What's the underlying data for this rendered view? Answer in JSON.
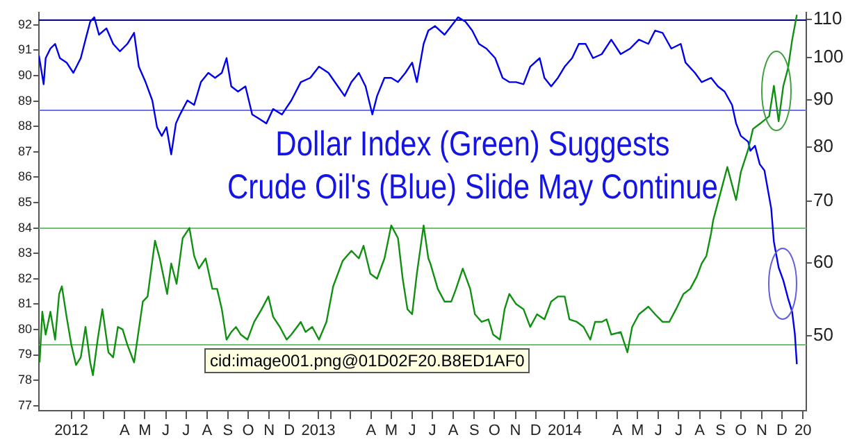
{
  "chart_data": {
    "type": "line",
    "title": "Dollar Index (Green) Suggests",
    "subtitle": "Crude Oil's (Blue) Slide May Continue",
    "annotations": [
      "cid:image001.png@01D02F20.B8ED1AF0"
    ],
    "xlim": [
      "2011-12-10",
      "2015-01-20"
    ],
    "xticks": [
      {
        "value": "2012-01-27",
        "label": "2012"
      },
      {
        "value": "2012-02-15",
        "label": null
      },
      {
        "value": "2012-03-15",
        "label": null
      },
      {
        "value": "2012-04-15",
        "label": "A"
      },
      {
        "value": "2012-05-15",
        "label": "M"
      },
      {
        "value": "2012-06-15",
        "label": "J"
      },
      {
        "value": "2012-07-15",
        "label": "J"
      },
      {
        "value": "2012-08-15",
        "label": "A"
      },
      {
        "value": "2012-09-15",
        "label": "S"
      },
      {
        "value": "2012-10-15",
        "label": "O"
      },
      {
        "value": "2012-11-15",
        "label": "N"
      },
      {
        "value": "2012-12-15",
        "label": "D"
      },
      {
        "value": "2013-01-27",
        "label": "2013"
      },
      {
        "value": "2013-02-15",
        "label": null
      },
      {
        "value": "2013-03-15",
        "label": null
      },
      {
        "value": "2013-04-15",
        "label": "A"
      },
      {
        "value": "2013-05-15",
        "label": "M"
      },
      {
        "value": "2013-06-15",
        "label": "J"
      },
      {
        "value": "2013-07-15",
        "label": "J"
      },
      {
        "value": "2013-08-15",
        "label": "A"
      },
      {
        "value": "2013-09-15",
        "label": "S"
      },
      {
        "value": "2013-10-15",
        "label": "O"
      },
      {
        "value": "2013-11-15",
        "label": "N"
      },
      {
        "value": "2013-12-15",
        "label": "D"
      },
      {
        "value": "2014-01-27",
        "label": "2014"
      },
      {
        "value": "2014-02-15",
        "label": null
      },
      {
        "value": "2014-03-15",
        "label": null
      },
      {
        "value": "2014-04-15",
        "label": "A"
      },
      {
        "value": "2014-05-15",
        "label": "M"
      },
      {
        "value": "2014-06-15",
        "label": "J"
      },
      {
        "value": "2014-07-15",
        "label": "J"
      },
      {
        "value": "2014-08-15",
        "label": "A"
      },
      {
        "value": "2014-09-15",
        "label": "S"
      },
      {
        "value": "2014-10-15",
        "label": "O"
      },
      {
        "value": "2014-11-15",
        "label": "N"
      },
      {
        "value": "2014-12-15",
        "label": "D"
      },
      {
        "value": "2015-01-15",
        "label": "20"
      }
    ],
    "ylim": [
      76.8,
      92.5
    ],
    "yticks": [
      77,
      78,
      79,
      80,
      81,
      82,
      83,
      84,
      85,
      86,
      87,
      88,
      89,
      90,
      91,
      92
    ],
    "y2lim": [
      41.5,
      112
    ],
    "y2ticks": [
      50,
      60,
      70,
      80,
      90,
      100,
      110
    ],
    "log": "y2",
    "grid": false,
    "legend": false,
    "ref_lines": [
      {
        "axis": "y2",
        "value": 110,
        "color": "#000080"
      },
      {
        "axis": "y2",
        "value": 87.8,
        "color": "#7070e8"
      },
      {
        "axis": "y",
        "value": 84,
        "color": "#70c070"
      },
      {
        "axis": "y",
        "value": 79.4,
        "color": "#70c070"
      }
    ],
    "series": [
      {
        "color": "#109010",
        "axis": "y",
        "x": [
          "2011-12-11",
          "2011-12-15",
          "2011-12-20",
          "2011-12-27",
          "2012-01-03",
          "2012-01-09",
          "2012-01-13",
          "2012-01-20",
          "2012-01-27",
          "2012-02-03",
          "2012-02-10",
          "2012-02-17",
          "2012-02-24",
          "2012-02-28",
          "2012-03-06",
          "2012-03-13",
          "2012-03-22",
          "2012-03-29",
          "2012-04-05",
          "2012-04-12",
          "2012-04-19",
          "2012-04-29",
          "2012-05-06",
          "2012-05-12",
          "2012-05-19",
          "2012-05-30",
          "2012-06-06",
          "2012-06-17",
          "2012-06-23",
          "2012-07-01",
          "2012-07-10",
          "2012-07-20",
          "2012-07-27",
          "2012-08-03",
          "2012-08-13",
          "2012-08-23",
          "2012-08-30",
          "2012-09-06",
          "2012-09-13",
          "2012-09-20",
          "2012-09-27",
          "2012-10-04",
          "2012-10-14",
          "2012-10-24",
          "2012-11-04",
          "2012-11-14",
          "2012-11-21",
          "2012-12-01",
          "2012-12-11",
          "2012-12-18",
          "2013-01-01",
          "2013-01-08",
          "2013-01-18",
          "2013-01-28",
          "2013-02-08",
          "2013-02-18",
          "2013-03-04",
          "2013-03-17",
          "2013-03-28",
          "2013-04-04",
          "2013-04-14",
          "2013-04-24",
          "2013-05-05",
          "2013-05-15",
          "2013-05-25",
          "2013-06-01",
          "2013-06-08",
          "2013-06-15",
          "2013-06-22",
          "2013-07-02",
          "2013-07-09",
          "2013-07-12",
          "2013-07-23",
          "2013-08-02",
          "2013-08-12",
          "2013-08-19",
          "2013-08-29",
          "2013-09-09",
          "2013-09-16",
          "2013-09-26",
          "2013-10-06",
          "2013-10-13",
          "2013-10-23",
          "2013-10-30",
          "2013-11-06",
          "2013-11-16",
          "2013-11-27",
          "2013-12-07",
          "2013-12-17",
          "2013-12-28",
          "2014-01-07",
          "2014-01-17",
          "2014-01-27",
          "2014-02-03",
          "2014-02-14",
          "2014-02-24",
          "2014-03-06",
          "2014-03-13",
          "2014-03-23",
          "2014-03-30",
          "2014-04-06",
          "2014-04-20",
          "2014-04-30",
          "2014-05-07",
          "2014-05-17",
          "2014-05-31",
          "2014-06-10",
          "2014-06-21",
          "2014-07-01",
          "2014-07-11",
          "2014-07-22",
          "2014-08-01",
          "2014-08-11",
          "2014-08-18",
          "2014-08-25",
          "2014-09-01",
          "2014-09-04",
          "2014-09-18",
          "2014-09-25",
          "2014-10-08",
          "2014-10-15",
          "2014-10-26",
          "2014-11-02",
          "2014-11-12",
          "2014-11-26",
          "2014-12-03",
          "2014-12-10",
          "2014-12-17",
          "2014-12-24",
          "2014-12-30",
          "2015-01-06"
        ],
        "values": [
          78.7,
          80.7,
          79.8,
          80.7,
          79.6,
          81.4,
          81.7,
          80.5,
          79.4,
          78.6,
          78.9,
          80.1,
          78.7,
          78.2,
          79.6,
          80.8,
          79.1,
          78.9,
          80.1,
          80,
          79.4,
          78.7,
          80,
          81.1,
          81.3,
          83.5,
          82.8,
          81.4,
          82.6,
          81.8,
          83.6,
          84,
          82.9,
          82.4,
          82.8,
          81.6,
          81.6,
          80.8,
          79.6,
          79.9,
          80.1,
          79.8,
          79.6,
          80.3,
          80.8,
          81.3,
          80.5,
          80.1,
          79.6,
          79.8,
          80.3,
          79.9,
          80.1,
          79.6,
          80.3,
          81.7,
          82.7,
          83.1,
          82.8,
          83.3,
          82.2,
          82,
          82.8,
          84.1,
          83.6,
          82,
          80.8,
          80.6,
          82.2,
          84.1,
          82.8,
          82.6,
          81.6,
          81.1,
          81.1,
          81.6,
          82.4,
          81.6,
          80.6,
          80.3,
          80.4,
          79.8,
          79.6,
          80.8,
          81.4,
          81,
          80.8,
          80.1,
          80.6,
          80.4,
          81.1,
          81.3,
          81.3,
          80.4,
          80.3,
          80.1,
          79.6,
          80.3,
          80.3,
          80.4,
          79.8,
          79.9,
          79.1,
          80.1,
          80.6,
          80.9,
          80.6,
          80.3,
          80.3,
          80.8,
          81.4,
          81.6,
          82.1,
          82.6,
          82.9,
          83.8,
          84.3,
          85.7,
          86.4,
          85.1,
          86.2,
          87.1,
          87.9,
          88.1,
          88.4,
          89.6,
          88.2,
          89.6,
          90.3,
          91.4,
          92.4
        ]
      },
      {
        "color": "#0000ee",
        "axis": "y2",
        "x": [
          "2011-12-10",
          "2011-12-17",
          "2011-12-20",
          "2011-12-27",
          "2012-01-03",
          "2012-01-10",
          "2012-01-20",
          "2012-01-30",
          "2012-02-10",
          "2012-02-17",
          "2012-02-24",
          "2012-03-01",
          "2012-03-08",
          "2012-03-19",
          "2012-03-29",
          "2012-04-08",
          "2012-04-19",
          "2012-04-29",
          "2012-05-06",
          "2012-05-16",
          "2012-05-26",
          "2012-06-02",
          "2012-06-09",
          "2012-06-16",
          "2012-06-23",
          "2012-06-30",
          "2012-07-06",
          "2012-07-17",
          "2012-07-27",
          "2012-08-06",
          "2012-08-17",
          "2012-08-27",
          "2012-09-06",
          "2012-09-13",
          "2012-09-20",
          "2012-09-30",
          "2012-10-11",
          "2012-10-21",
          "2012-10-31",
          "2012-11-11",
          "2012-11-21",
          "2012-12-04",
          "2012-12-18",
          "2013-01-01",
          "2013-01-15",
          "2013-01-28",
          "2013-02-11",
          "2013-02-25",
          "2013-03-07",
          "2013-03-17",
          "2013-03-28",
          "2013-04-07",
          "2013-04-17",
          "2013-04-24",
          "2013-05-05",
          "2013-05-15",
          "2013-05-25",
          "2013-06-05",
          "2013-06-15",
          "2013-06-22",
          "2013-07-02",
          "2013-07-09",
          "2013-07-19",
          "2013-08-02",
          "2013-08-12",
          "2013-08-22",
          "2013-09-02",
          "2013-09-12",
          "2013-09-22",
          "2013-10-03",
          "2013-10-16",
          "2013-10-27",
          "2013-11-06",
          "2013-11-16",
          "2013-11-27",
          "2013-12-07",
          "2013-12-21",
          "2013-12-28",
          "2014-01-07",
          "2014-01-17",
          "2014-01-27",
          "2014-02-07",
          "2014-02-17",
          "2014-02-27",
          "2014-03-10",
          "2014-03-23",
          "2014-04-06",
          "2014-04-20",
          "2014-05-04",
          "2014-05-17",
          "2014-05-31",
          "2014-06-10",
          "2014-06-21",
          "2014-07-04",
          "2014-07-18",
          "2014-07-25",
          "2014-08-08",
          "2014-08-18",
          "2014-09-01",
          "2014-09-11",
          "2014-09-21",
          "2014-10-02",
          "2014-10-08",
          "2014-10-15",
          "2014-10-26",
          "2014-10-29",
          "2014-11-05",
          "2014-11-12",
          "2014-11-19",
          "2014-11-29",
          "2014-12-03",
          "2014-12-10",
          "2014-12-17",
          "2014-12-24",
          "2014-12-30",
          "2015-01-03",
          "2015-01-06"
        ],
        "values": [
          100.5,
          93.6,
          99.9,
          102.3,
          103.5,
          99.9,
          98.8,
          96.3,
          99.9,
          104.6,
          109.4,
          110.6,
          105.9,
          107.6,
          103.5,
          101.6,
          103.5,
          106.4,
          97.8,
          94.1,
          89.9,
          84.1,
          82.3,
          84.1,
          78.6,
          84.9,
          86.8,
          89.9,
          88.9,
          94.1,
          96.3,
          95.1,
          96.3,
          99.9,
          93.1,
          91.9,
          93.1,
          86.8,
          85.9,
          84.9,
          88,
          86.8,
          89.9,
          94.1,
          95.1,
          97.8,
          96.3,
          93.1,
          90.9,
          94.1,
          96.3,
          93.1,
          86.8,
          90.9,
          95.1,
          95.1,
          94.1,
          96.3,
          98.8,
          94.1,
          103.5,
          107,
          108.2,
          105.9,
          108.2,
          110.6,
          109.4,
          107,
          103.5,
          102.3,
          99.9,
          95.1,
          94.1,
          94.1,
          93.6,
          97.8,
          99.9,
          95.1,
          93.1,
          95.1,
          97.8,
          99.9,
          103.5,
          103.5,
          99.9,
          100.9,
          104.6,
          100.9,
          102.3,
          104.6,
          103.5,
          107,
          106.4,
          102.3,
          103.5,
          98.8,
          96.3,
          94.1,
          95.1,
          93.1,
          91.9,
          88.9,
          84.9,
          82.3,
          81.1,
          79.3,
          80.3,
          76.7,
          75.5,
          68.7,
          63.2,
          59.3,
          57.4,
          54.9,
          53.1,
          50.3,
          46.6
        ]
      }
    ]
  }
}
